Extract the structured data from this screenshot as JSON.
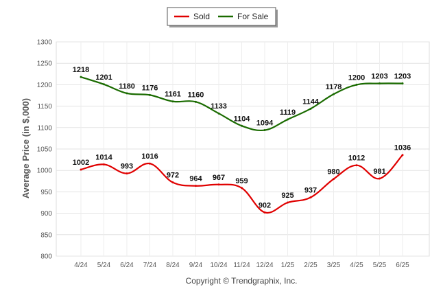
{
  "chart_data": {
    "type": "line",
    "categories": [
      "4/24",
      "5/24",
      "6/24",
      "7/24",
      "8/24",
      "9/24",
      "10/24",
      "11/24",
      "12/24",
      "1/25",
      "2/25",
      "3/25",
      "4/25",
      "5/25",
      "6/25"
    ],
    "series": [
      {
        "name": "Sold",
        "color": "#e00000",
        "values": [
          1002,
          1014,
          993,
          1016,
          972,
          964,
          967,
          959,
          902,
          925,
          937,
          980,
          1012,
          981,
          1036
        ]
      },
      {
        "name": "For Sale",
        "color": "#1a6b00",
        "values": [
          1218,
          1201,
          1180,
          1176,
          1161,
          1160,
          1133,
          1104,
          1094,
          1119,
          1144,
          1178,
          1200,
          1203,
          1203
        ]
      }
    ],
    "ylabel": "Average Price (in $,000)",
    "xlabel": "",
    "ylim": [
      800,
      1300
    ],
    "yticks": [
      "800",
      "850",
      "900",
      "950",
      "1000",
      "1050",
      "1100",
      "1150",
      "1200",
      "1250",
      "1300"
    ],
    "grid": true,
    "legend": "top-center",
    "footer": "Copyright © Trendgraphix, Inc."
  }
}
